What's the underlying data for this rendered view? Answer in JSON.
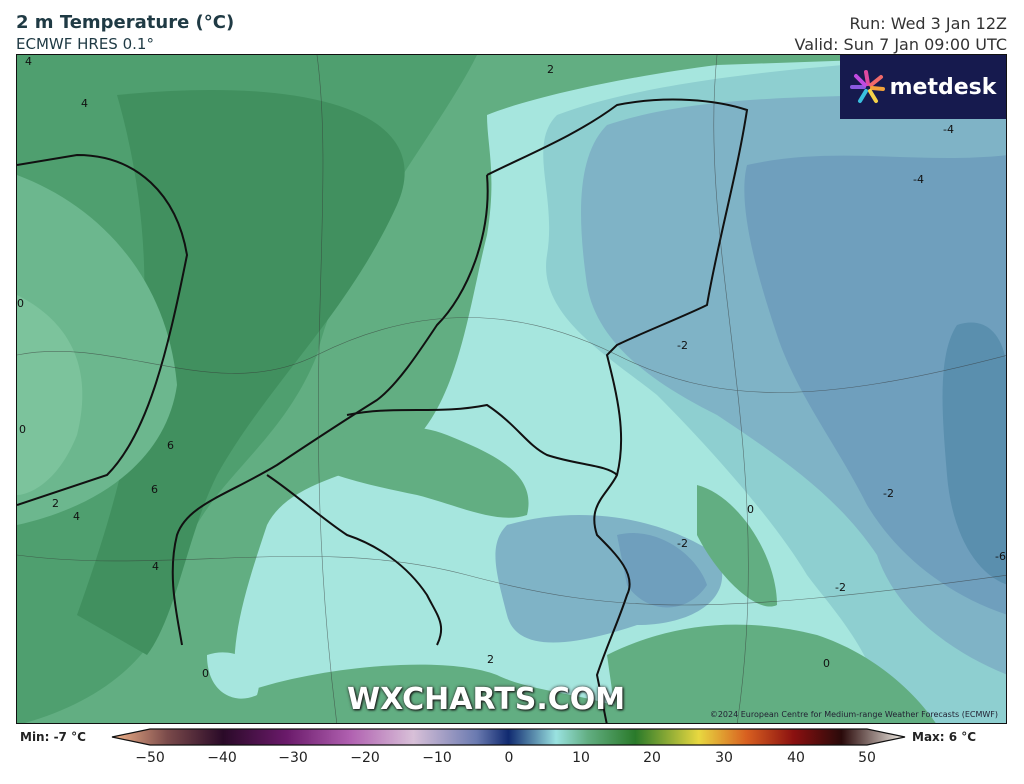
{
  "header": {
    "title": "2 m Temperature (°C)",
    "subtitle": "ECMWF HRES 0.1°",
    "run": "Run: Wed 3 Jan 12Z",
    "valid": "Valid: Sun 7 Jan 09:00 UTC"
  },
  "logo": {
    "text": "metdesk"
  },
  "watermark": "WXCHARTS.COM",
  "copyright": "©2024 European Centre for Medium-range Weather Forecasts (ECMWF)",
  "contour_labels": [
    "4",
    "4",
    "2",
    "0",
    "0",
    "2",
    "4",
    "6",
    "6",
    "4",
    "0",
    "2",
    "-4",
    "-4",
    "-2",
    "-2",
    "0",
    "-2",
    "-2",
    "-6",
    "0"
  ],
  "colorbar": {
    "min_label": "Min: -7 °C",
    "max_label": "Max: 6 °C",
    "ticks": [
      "−50",
      "−40",
      "−30",
      "−20",
      "−10",
      "0",
      "10",
      "20",
      "30",
      "40",
      "50"
    ],
    "range": [
      -50,
      50
    ],
    "unit": "°C"
  },
  "colors": {
    "cold_blue": "#5a8fae",
    "mid_blue": "#7fb3c6",
    "cyan": "#a6e6de",
    "green": "#62ae82",
    "dark_green": "#41905f",
    "logo_bg": "#161a4e"
  }
}
